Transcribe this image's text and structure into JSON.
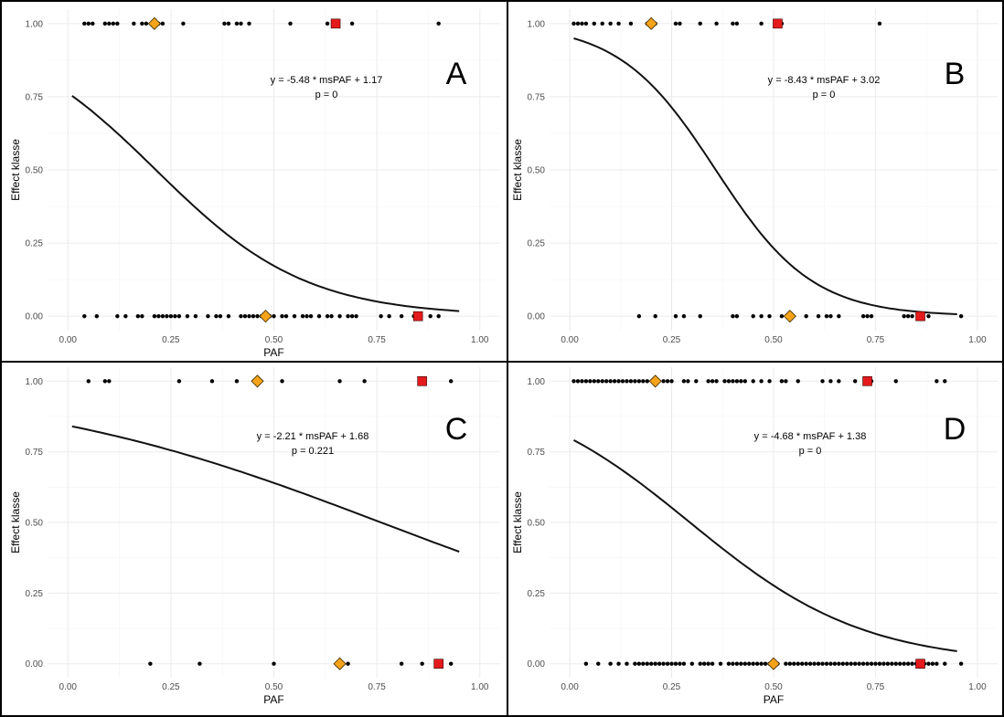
{
  "chart_data": [
    {
      "type": "scatter",
      "panel": "A",
      "letter": "A",
      "xlabel": "PAF",
      "ylabel": "Effect klasse",
      "xlim": [
        0,
        1
      ],
      "ylim": [
        0,
        1
      ],
      "x_ticks": [
        "0.00",
        "0.25",
        "0.50",
        "0.75",
        "1.00"
      ],
      "y_ticks": [
        "0.00",
        "0.25",
        "0.50",
        "0.75",
        "1.00"
      ],
      "equation": "y = -5.48 * msPAF + 1.17",
      "pvalue": "p = 0",
      "logistic": {
        "slope": -5.48,
        "intercept": 1.17,
        "x_range": [
          0.01,
          0.95
        ]
      },
      "points_y1": [
        0.04,
        0.05,
        0.06,
        0.09,
        0.1,
        0.11,
        0.12,
        0.16,
        0.18,
        0.19,
        0.21,
        0.22,
        0.23,
        0.28,
        0.38,
        0.39,
        0.41,
        0.42,
        0.44,
        0.54,
        0.63,
        0.65,
        0.69,
        0.9
      ],
      "points_y0": [
        0.04,
        0.07,
        0.12,
        0.14,
        0.17,
        0.18,
        0.21,
        0.22,
        0.23,
        0.24,
        0.25,
        0.26,
        0.27,
        0.29,
        0.31,
        0.34,
        0.36,
        0.37,
        0.39,
        0.42,
        0.43,
        0.44,
        0.45,
        0.46,
        0.47,
        0.49,
        0.5,
        0.52,
        0.53,
        0.55,
        0.57,
        0.58,
        0.59,
        0.61,
        0.63,
        0.64,
        0.66,
        0.68,
        0.69,
        0.7,
        0.76,
        0.78,
        0.81,
        0.84,
        0.88,
        0.9
      ],
      "mean_y1": 0.21,
      "mean_y0": 0.48,
      "median_y1": 0.65,
      "median_y0": 0.85
    },
    {
      "type": "scatter",
      "panel": "B",
      "letter": "B",
      "xlabel": "",
      "ylabel": "Effect klasse",
      "xlim": [
        0,
        1
      ],
      "ylim": [
        0,
        1
      ],
      "x_ticks": [
        "0.00",
        "0.25",
        "0.50",
        "0.75",
        "1.00"
      ],
      "y_ticks": [
        "0.00",
        "0.25",
        "0.50",
        "0.75",
        "1.00"
      ],
      "equation": "y = -8.43 * msPAF + 3.02",
      "pvalue": "p = 0",
      "logistic": {
        "slope": -8.43,
        "intercept": 3.02,
        "x_range": [
          0.01,
          0.95
        ]
      },
      "points_y1": [
        0.01,
        0.02,
        0.03,
        0.04,
        0.06,
        0.08,
        0.1,
        0.12,
        0.15,
        0.19,
        0.21,
        0.26,
        0.27,
        0.32,
        0.36,
        0.4,
        0.41,
        0.47,
        0.52,
        0.76
      ],
      "points_y0": [
        0.17,
        0.21,
        0.26,
        0.28,
        0.32,
        0.4,
        0.41,
        0.45,
        0.47,
        0.49,
        0.52,
        0.58,
        0.61,
        0.63,
        0.64,
        0.66,
        0.72,
        0.73,
        0.74,
        0.82,
        0.83,
        0.84,
        0.88,
        0.96
      ],
      "mean_y1": 0.2,
      "mean_y0": 0.54,
      "median_y1": 0.51,
      "median_y0": 0.86
    },
    {
      "type": "scatter",
      "panel": "C",
      "letter": "C",
      "xlabel": "PAF",
      "ylabel": "Effect klasse",
      "xlim": [
        0,
        1
      ],
      "ylim": [
        0,
        1
      ],
      "x_ticks": [
        "0.00",
        "0.25",
        "0.50",
        "0.75",
        "1.00"
      ],
      "y_ticks": [
        "0.00",
        "0.25",
        "0.50",
        "0.75",
        "1.00"
      ],
      "equation": "y = -2.21 * msPAF + 1.68",
      "pvalue": "p = 0.221",
      "logistic": {
        "slope": -2.21,
        "intercept": 1.68,
        "x_range": [
          0.01,
          0.95
        ]
      },
      "points_y1": [
        0.05,
        0.09,
        0.1,
        0.27,
        0.35,
        0.41,
        0.52,
        0.66,
        0.72,
        0.93
      ],
      "points_y0": [
        0.2,
        0.32,
        0.5,
        0.68,
        0.81,
        0.86,
        0.93
      ],
      "mean_y1": 0.46,
      "mean_y0": 0.66,
      "median_y1": 0.86,
      "median_y0": 0.9
    },
    {
      "type": "scatter",
      "panel": "D",
      "letter": "D",
      "xlabel": "PAF",
      "ylabel": "Effect klasse",
      "xlim": [
        0,
        1
      ],
      "ylim": [
        0,
        1
      ],
      "x_ticks": [
        "0.00",
        "0.25",
        "0.50",
        "0.75",
        "1.00"
      ],
      "y_ticks": [
        "0.00",
        "0.25",
        "0.50",
        "0.75",
        "1.00"
      ],
      "equation": "y = -4.68 * msPAF + 1.38",
      "pvalue": "p = 0",
      "logistic": {
        "slope": -4.68,
        "intercept": 1.38,
        "x_range": [
          0.01,
          0.95
        ]
      },
      "points_y1": [
        0.01,
        0.02,
        0.03,
        0.04,
        0.05,
        0.06,
        0.07,
        0.08,
        0.09,
        0.1,
        0.11,
        0.12,
        0.13,
        0.14,
        0.15,
        0.16,
        0.17,
        0.18,
        0.19,
        0.23,
        0.24,
        0.25,
        0.28,
        0.29,
        0.31,
        0.34,
        0.35,
        0.36,
        0.38,
        0.39,
        0.4,
        0.41,
        0.42,
        0.43,
        0.45,
        0.47,
        0.49,
        0.52,
        0.53,
        0.56,
        0.62,
        0.64,
        0.66,
        0.7,
        0.74,
        0.8,
        0.9,
        0.92
      ],
      "points_y0": [
        0.04,
        0.07,
        0.1,
        0.12,
        0.14,
        0.16,
        0.17,
        0.18,
        0.19,
        0.2,
        0.21,
        0.22,
        0.23,
        0.24,
        0.25,
        0.26,
        0.27,
        0.28,
        0.3,
        0.32,
        0.33,
        0.34,
        0.35,
        0.37,
        0.39,
        0.4,
        0.41,
        0.42,
        0.43,
        0.44,
        0.45,
        0.46,
        0.47,
        0.48,
        0.49,
        0.5,
        0.51,
        0.53,
        0.54,
        0.55,
        0.56,
        0.57,
        0.58,
        0.59,
        0.6,
        0.61,
        0.62,
        0.63,
        0.64,
        0.65,
        0.66,
        0.67,
        0.68,
        0.69,
        0.7,
        0.71,
        0.72,
        0.73,
        0.74,
        0.75,
        0.76,
        0.77,
        0.78,
        0.79,
        0.8,
        0.81,
        0.82,
        0.83,
        0.84,
        0.85,
        0.86,
        0.87,
        0.88,
        0.89,
        0.9,
        0.92,
        0.96
      ],
      "mean_y1": 0.21,
      "mean_y0": 0.5,
      "median_y1": 0.73,
      "median_y0": 0.86
    }
  ],
  "colors": {
    "mean_marker": "#f5a31a",
    "median_marker": "#e41a1c",
    "point": "#000000",
    "curve": "#111111",
    "grid": "#ebebeb"
  }
}
